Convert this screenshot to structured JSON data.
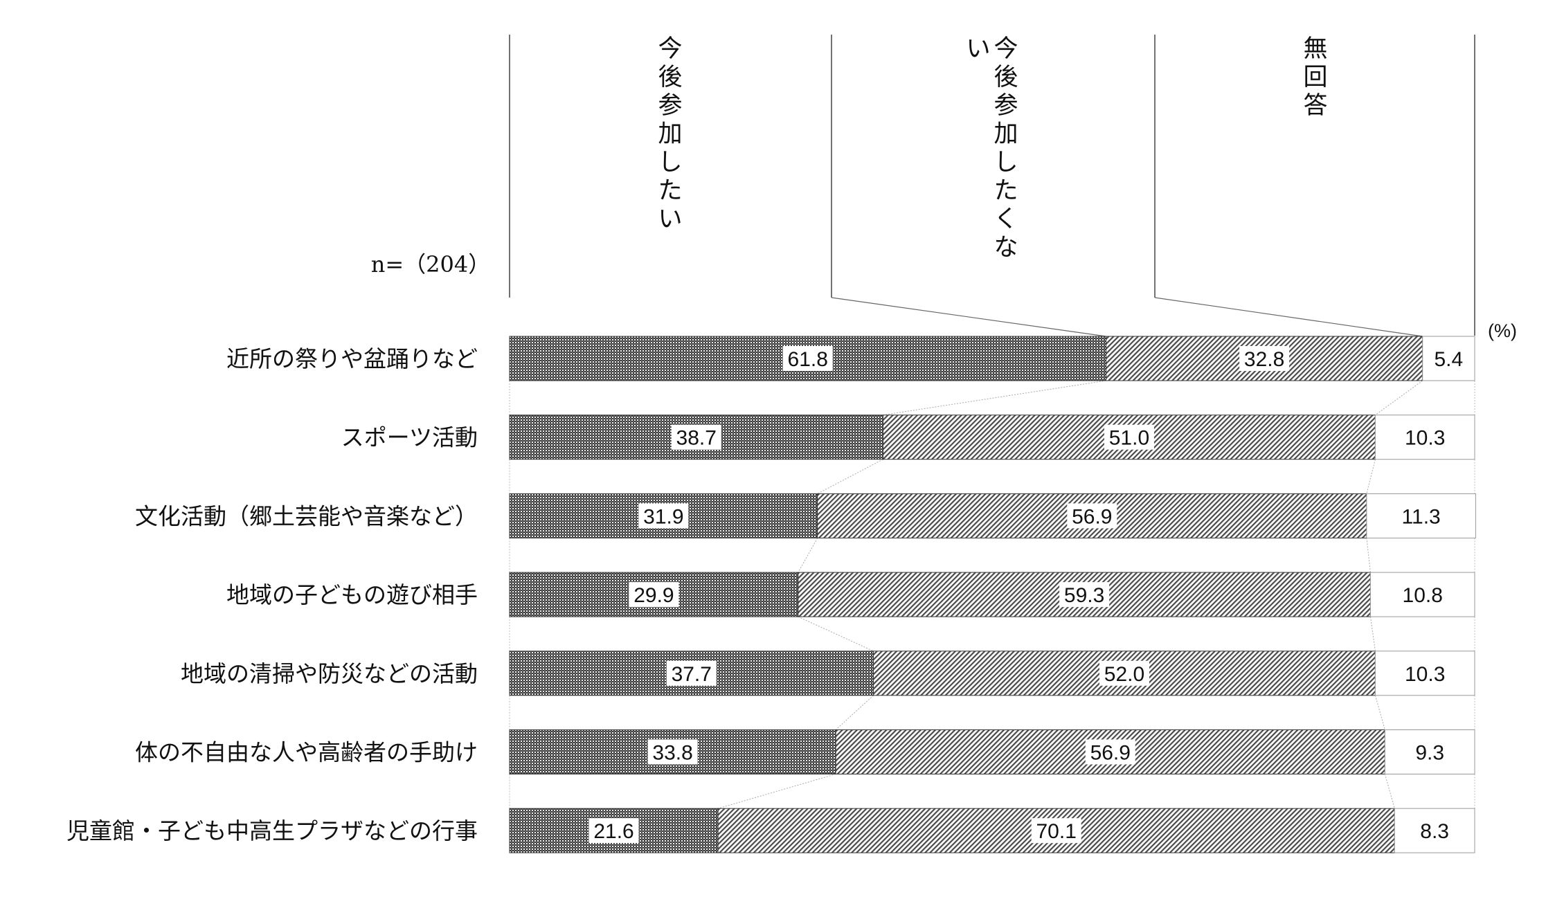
{
  "chart_data": {
    "type": "bar",
    "stacked": true,
    "orientation": "horizontal",
    "n_label": "n=（204）",
    "unit": "(%)",
    "categories": [
      "近所の祭りや盆踊りなど",
      "スポーツ活動",
      "文化活動（郷土芸能や音楽など）",
      "地域の子どもの遊び相手",
      "地域の清掃や防災などの活動",
      "体の不自由な人や高齢者の手助け",
      "児童館・子ども中高生プラザなどの行事"
    ],
    "series": [
      {
        "name": "今後参加したい",
        "values": [
          61.8,
          38.7,
          31.9,
          29.9,
          37.7,
          33.8,
          21.6
        ],
        "color": "#555555",
        "pattern": "dense-check"
      },
      {
        "name": "今後参加したくない",
        "values": [
          32.8,
          51.0,
          56.9,
          59.3,
          52.0,
          56.9,
          70.1
        ],
        "color": "#777777",
        "pattern": "diagonal-hatch"
      },
      {
        "name": "無回答",
        "values": [
          5.4,
          10.3,
          11.3,
          10.8,
          10.3,
          9.3,
          8.3
        ],
        "color": "#ffffff",
        "pattern": "none"
      }
    ],
    "xlim": [
      0,
      100
    ],
    "legend": "column headers above bars",
    "grid": false
  }
}
